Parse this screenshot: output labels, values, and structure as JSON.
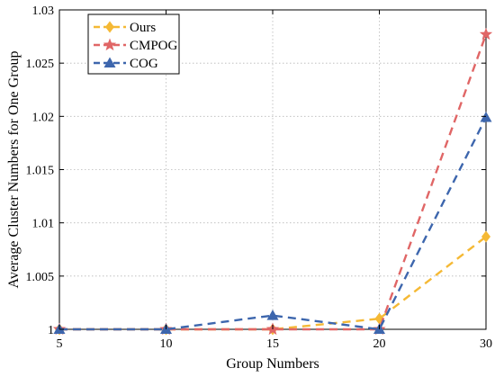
{
  "chart_data": {
    "type": "line",
    "x": [
      5,
      10,
      15,
      20,
      30
    ],
    "xlabel": "Group Numbers",
    "ylabel": "Average Cluster Numbers for One Group",
    "xlim": [
      5,
      30
    ],
    "ylim": [
      1,
      1.03
    ],
    "xticks": [
      5,
      10,
      15,
      20,
      30
    ],
    "xtick_labels": [
      "5",
      "10",
      "15",
      "20",
      "30"
    ],
    "yticks": [
      1,
      1.005,
      1.01,
      1.015,
      1.02,
      1.025,
      1.03
    ],
    "ytick_labels": [
      "1",
      "1.005",
      "1.01",
      "1.015",
      "1.02",
      "1.025",
      "1.03"
    ],
    "grid": true,
    "legend_position": "top-left",
    "series": [
      {
        "name": "Ours",
        "values": [
          1.0,
          1.0,
          1.0,
          1.001,
          1.0087
        ],
        "color": "#f5b935",
        "marker": "diamond"
      },
      {
        "name": "CMPOG",
        "values": [
          1.0,
          1.0,
          1.0,
          1.0,
          1.0277
        ],
        "color": "#e06666",
        "marker": "star"
      },
      {
        "name": "COG",
        "values": [
          1.0,
          1.0,
          1.0013,
          1.0,
          1.0199
        ],
        "color": "#3d66ad",
        "marker": "triangle"
      }
    ]
  }
}
